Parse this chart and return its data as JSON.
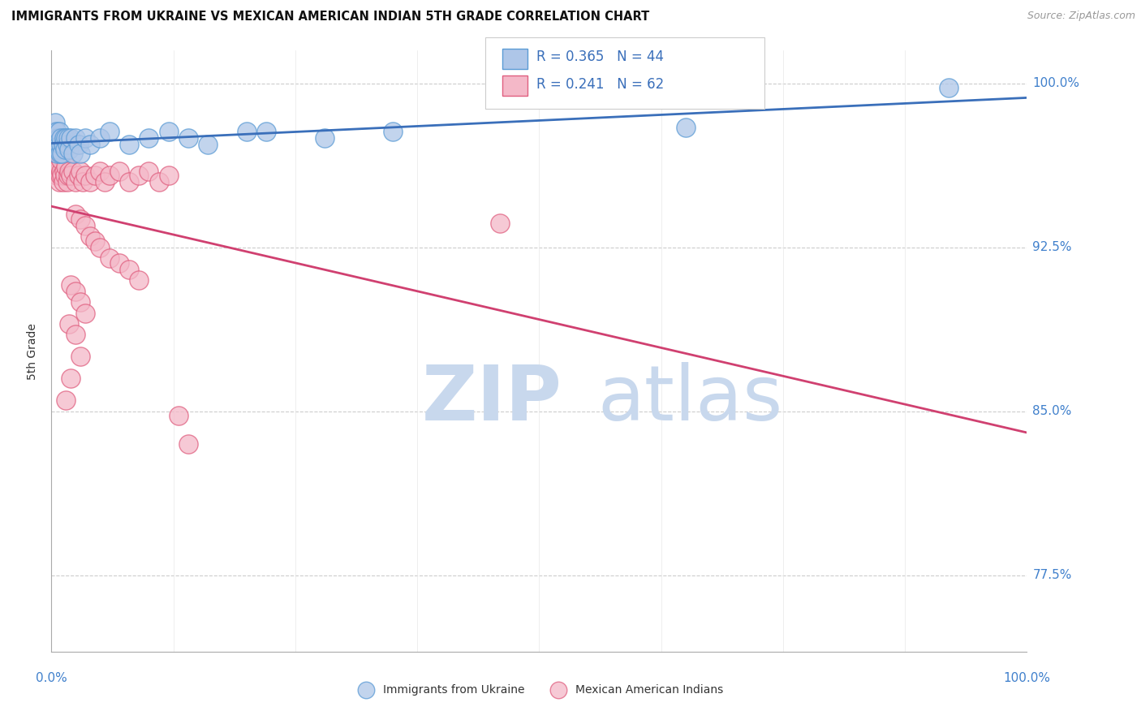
{
  "title": "IMMIGRANTS FROM UKRAINE VS MEXICAN AMERICAN INDIAN 5TH GRADE CORRELATION CHART",
  "source": "Source: ZipAtlas.com",
  "ylabel": "5th Grade",
  "ukraine_color_face": "#aec6e8",
  "ukraine_color_edge": "#5b9bd5",
  "mexico_color_face": "#f4b8c8",
  "mexico_color_edge": "#e06080",
  "ukraine_R": 0.365,
  "ukraine_N": 44,
  "mexico_R": 0.241,
  "mexico_N": 62,
  "ukraine_line_color": "#3a6fba",
  "mexico_line_color": "#d04070",
  "legend_text_color": "#3a6fba",
  "xlim": [
    0.0,
    1.0
  ],
  "ylim": [
    0.74,
    1.015
  ],
  "ytick_vals": [
    0.775,
    0.85,
    0.925,
    1.0
  ],
  "ytick_labels": [
    "77.5%",
    "85.0%",
    "92.5%",
    "100.0%"
  ],
  "ukraine_x": [
    0.002,
    0.003,
    0.004,
    0.004,
    0.005,
    0.005,
    0.006,
    0.006,
    0.006,
    0.007,
    0.007,
    0.008,
    0.008,
    0.009,
    0.01,
    0.01,
    0.011,
    0.012,
    0.013,
    0.014,
    0.015,
    0.016,
    0.017,
    0.018,
    0.02,
    0.022,
    0.025,
    0.028,
    0.03,
    0.035,
    0.04,
    0.05,
    0.06,
    0.08,
    0.1,
    0.12,
    0.14,
    0.16,
    0.2,
    0.22,
    0.28,
    0.35,
    0.65,
    0.92
  ],
  "ukraine_y": [
    0.975,
    0.972,
    0.978,
    0.982,
    0.97,
    0.975,
    0.968,
    0.972,
    0.978,
    0.97,
    0.975,
    0.972,
    0.978,
    0.968,
    0.972,
    0.975,
    0.968,
    0.972,
    0.975,
    0.97,
    0.975,
    0.972,
    0.975,
    0.97,
    0.975,
    0.968,
    0.975,
    0.972,
    0.968,
    0.975,
    0.972,
    0.975,
    0.978,
    0.972,
    0.975,
    0.978,
    0.975,
    0.972,
    0.978,
    0.978,
    0.975,
    0.978,
    0.98,
    0.998
  ],
  "mexico_x": [
    0.002,
    0.003,
    0.004,
    0.005,
    0.005,
    0.006,
    0.006,
    0.007,
    0.007,
    0.008,
    0.008,
    0.009,
    0.01,
    0.01,
    0.011,
    0.012,
    0.013,
    0.014,
    0.015,
    0.016,
    0.017,
    0.018,
    0.02,
    0.022,
    0.025,
    0.028,
    0.03,
    0.032,
    0.035,
    0.04,
    0.045,
    0.05,
    0.055,
    0.06,
    0.07,
    0.08,
    0.09,
    0.1,
    0.11,
    0.12,
    0.025,
    0.03,
    0.035,
    0.04,
    0.045,
    0.05,
    0.06,
    0.07,
    0.08,
    0.09,
    0.02,
    0.025,
    0.03,
    0.035,
    0.018,
    0.025,
    0.03,
    0.02,
    0.015,
    0.13,
    0.14,
    0.46
  ],
  "mexico_y": [
    0.968,
    0.962,
    0.965,
    0.96,
    0.972,
    0.958,
    0.965,
    0.96,
    0.968,
    0.955,
    0.962,
    0.958,
    0.96,
    0.965,
    0.958,
    0.955,
    0.96,
    0.958,
    0.962,
    0.955,
    0.958,
    0.96,
    0.958,
    0.96,
    0.955,
    0.958,
    0.96,
    0.955,
    0.958,
    0.955,
    0.958,
    0.96,
    0.955,
    0.958,
    0.96,
    0.955,
    0.958,
    0.96,
    0.955,
    0.958,
    0.94,
    0.938,
    0.935,
    0.93,
    0.928,
    0.925,
    0.92,
    0.918,
    0.915,
    0.91,
    0.908,
    0.905,
    0.9,
    0.895,
    0.89,
    0.885,
    0.875,
    0.865,
    0.855,
    0.848,
    0.835,
    0.936
  ],
  "watermark_zip_color": "#c8d8ed",
  "watermark_atlas_color": "#c8d8ed"
}
